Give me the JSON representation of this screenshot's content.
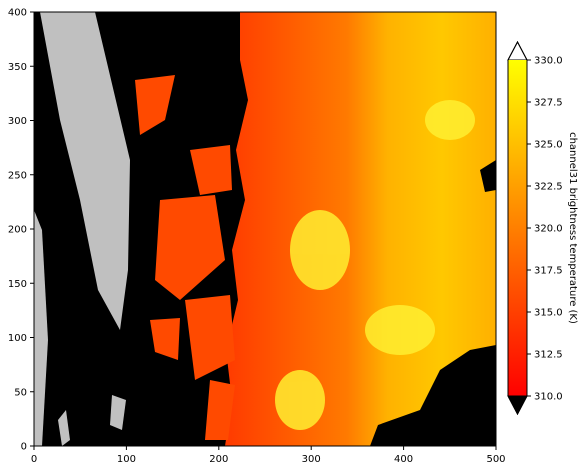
{
  "chart_data": {
    "type": "heatmap",
    "title": "",
    "xlabel": "",
    "ylabel": "",
    "xlim": [
      0,
      500
    ],
    "ylim": [
      0,
      400
    ],
    "x_ticks": [
      "0",
      "100",
      "200",
      "300",
      "400",
      "500"
    ],
    "y_ticks": [
      "0",
      "50",
      "100",
      "150",
      "200",
      "250",
      "300",
      "350",
      "400"
    ],
    "colorbar": {
      "label": "channel31 brightness temperature (K)",
      "colormap": "autumn",
      "range": [
        310.0,
        330.0
      ],
      "extend": "both",
      "over_color": "#ffffff",
      "under_color": "#000000",
      "tick_labels": [
        "310.0",
        "312.5",
        "315.0",
        "317.5",
        "320.0",
        "322.5",
        "325.0",
        "327.5",
        "330.0"
      ],
      "tick_values": [
        310.0,
        312.5,
        315.0,
        317.5,
        320.0,
        322.5,
        325.0,
        327.5,
        330.0
      ]
    },
    "regions": [
      {
        "name": "masked",
        "color": "#c0c0c0"
      },
      {
        "name": "below range",
        "color": "#000000"
      }
    ],
    "grid": false
  }
}
